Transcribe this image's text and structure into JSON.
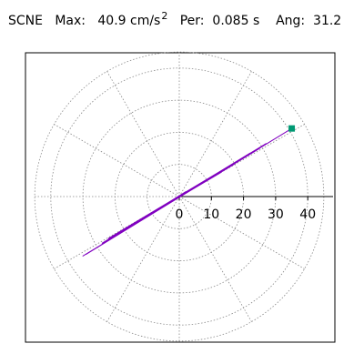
{
  "header": {
    "component": "SCNE",
    "max_label": "Max:",
    "max_value": "40.9",
    "max_unit": "cm/s",
    "max_unit_exp": "2",
    "per_label": "Per:",
    "per_value": "0.085 s",
    "ang_label": "Ang:",
    "ang_value": "31.2"
  },
  "colors": {
    "trace": "#8000c0",
    "marker": "#009973",
    "grid": "#888888",
    "frame": "#000000"
  },
  "chart_data": {
    "type": "scatter",
    "title": "",
    "polar": true,
    "grid": true,
    "radial_max": 45,
    "ring_values": [
      10,
      20,
      30,
      40
    ],
    "spoke_step_deg": 30,
    "tick_labels": [
      "0",
      "10",
      "20",
      "30",
      "40"
    ],
    "peak": {
      "x": 35,
      "y": 21.2,
      "angle_deg": 31.2,
      "magnitude": 40.9
    },
    "x": [
      0,
      2,
      -2,
      4,
      -4,
      6,
      -7,
      9,
      -10,
      13,
      -14,
      17,
      -19,
      22,
      -24,
      27,
      -29,
      35,
      -30,
      25,
      -22,
      18,
      -15,
      12,
      -9,
      6,
      -4,
      3,
      -1,
      0
    ],
    "y": [
      0,
      1.5,
      -1,
      2.2,
      -2.5,
      3.5,
      -4,
      5.5,
      -6,
      7.5,
      -8.5,
      10,
      -11.5,
      13.5,
      -14.5,
      16.5,
      -18,
      21.2,
      -18.5,
      15,
      -13,
      11,
      -9,
      7,
      -5.5,
      3.5,
      -2.5,
      1.8,
      -0.6,
      0
    ]
  }
}
